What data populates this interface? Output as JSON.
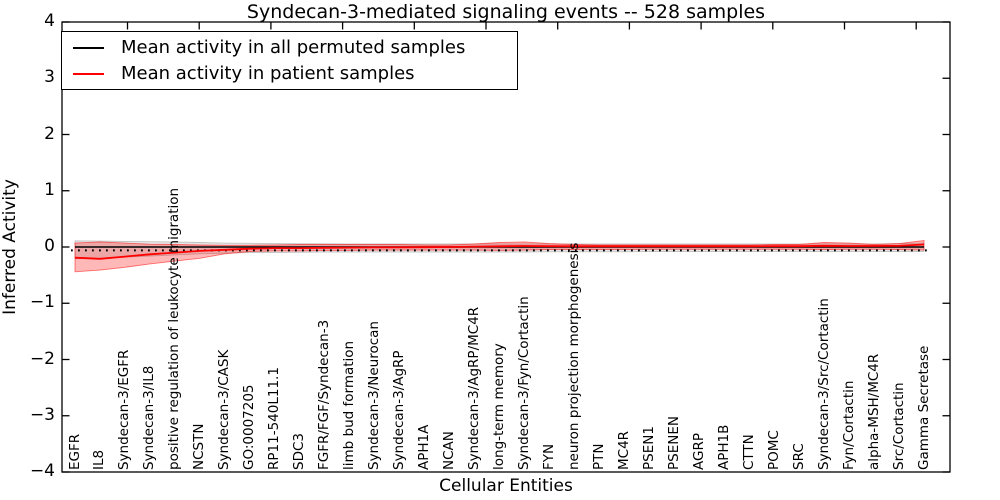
{
  "chart_data": {
    "type": "line",
    "title": "Syndecan-3-mediated signaling events -- 528 samples",
    "xlabel": "Cellular Entities",
    "ylabel": "Inferred Activity",
    "ylim": [
      -4,
      4
    ],
    "yticks": [
      4,
      3,
      2,
      1,
      0,
      -1,
      -2,
      -3,
      -4
    ],
    "grid": false,
    "legend_position": "upper left",
    "categories": [
      "EGFR",
      "IL8",
      "Syndecan-3/EGFR",
      "Syndecan-3/IL8",
      "positive regulation of leukocyte migration",
      "NCSTN",
      "Syndecan-3/CASK",
      "GO:0007205",
      "RP11-540L11.1",
      "SDC3",
      "FGFR/FGF/Syndecan-3",
      "limb bud formation",
      "Syndecan-3/Neurocan",
      "Syndecan-3/AgRP",
      "APH1A",
      "NCAN",
      "Syndecan-3/AgRP/MC4R",
      "long-term memory",
      "Syndecan-3/Fyn/Cortactin",
      "FYN",
      "neuron projection morphogenesis",
      "PTN",
      "MC4R",
      "PSEN1",
      "PSENEN",
      "AGRP",
      "APH1B",
      "CTTN",
      "POMC",
      "SRC",
      "Syndecan-3/Src/Cortactin",
      "Fyn/Cortactin",
      "alpha-MSH/MC4R",
      "Src/Cortactin",
      "Gamma Secretase"
    ],
    "series": [
      {
        "name": "Mean activity in all permuted samples",
        "color": "#000000",
        "values": [
          0,
          0,
          0,
          0,
          0,
          0,
          0,
          0,
          0,
          0,
          0,
          0,
          0,
          0,
          0,
          0,
          0,
          0,
          0,
          0,
          0,
          0,
          0,
          0,
          0,
          0,
          0,
          0,
          0,
          0,
          0,
          0,
          0,
          0,
          0
        ]
      },
      {
        "name": "Mean activity in patient samples",
        "color": "#ff0000",
        "values": [
          -0.19,
          -0.21,
          -0.17,
          -0.13,
          -0.1,
          -0.07,
          -0.05,
          -0.03,
          -0.02,
          -0.02,
          -0.015,
          -0.01,
          -0.008,
          -0.006,
          -0.004,
          0,
          0.007,
          0.012,
          0.018,
          0.014,
          0.012,
          0.012,
          0.012,
          0.012,
          0.012,
          0.012,
          0.012,
          0.012,
          0.014,
          0.014,
          0.021,
          0.018,
          0.018,
          0.021,
          0.044
        ]
      }
    ],
    "bands": [
      {
        "name": "permuted samples activity range",
        "color": "#8c8c8c",
        "opacity": 0.22,
        "upper": [
          0.11,
          0.105,
          0.1,
          0.095,
          0.09,
          0.08,
          0.07,
          0.065,
          0.06,
          0.058,
          0.056,
          0.055,
          0.055,
          0.055,
          0.055,
          0.055,
          0.055,
          0.055,
          0.055,
          0.055,
          0.055,
          0.055,
          0.055,
          0.055,
          0.055,
          0.055,
          0.055,
          0.055,
          0.055,
          0.055,
          0.055,
          0.055,
          0.055,
          0.06,
          0.07
        ],
        "lower": [
          -0.21,
          -0.2,
          -0.18,
          -0.16,
          -0.14,
          -0.12,
          -0.11,
          -0.1,
          -0.1,
          -0.095,
          -0.09,
          -0.09,
          -0.09,
          -0.09,
          -0.09,
          -0.09,
          -0.09,
          -0.09,
          -0.09,
          -0.085,
          -0.085,
          -0.085,
          -0.085,
          -0.08,
          -0.08,
          -0.08,
          -0.08,
          -0.08,
          -0.08,
          -0.08,
          -0.08,
          -0.08,
          -0.08,
          -0.08,
          -0.08
        ]
      },
      {
        "name": "patient samples activity range",
        "color": "#ff0000",
        "opacity": 0.28,
        "upper": [
          0.07,
          0.09,
          0.07,
          0.05,
          0.045,
          0.035,
          0.03,
          0.03,
          0.035,
          0.045,
          0.045,
          0.045,
          0.045,
          0.045,
          0.035,
          0.035,
          0.055,
          0.08,
          0.09,
          0.06,
          0.045,
          0.035,
          0.035,
          0.035,
          0.035,
          0.035,
          0.035,
          0.035,
          0.045,
          0.045,
          0.08,
          0.07,
          0.045,
          0.06,
          0.115
        ],
        "lower": [
          -0.44,
          -0.41,
          -0.36,
          -0.3,
          -0.25,
          -0.2,
          -0.12,
          -0.08,
          -0.07,
          -0.07,
          -0.06,
          -0.06,
          -0.055,
          -0.055,
          -0.055,
          -0.055,
          -0.055,
          -0.06,
          -0.055,
          -0.045,
          -0.045,
          -0.045,
          -0.045,
          -0.04,
          -0.04,
          -0.04,
          -0.04,
          -0.04,
          -0.04,
          -0.04,
          -0.045,
          -0.04,
          -0.04,
          -0.045,
          -0.055
        ]
      }
    ],
    "zero_line": {
      "style": "dotted",
      "color": "#000000",
      "y": 0
    }
  }
}
